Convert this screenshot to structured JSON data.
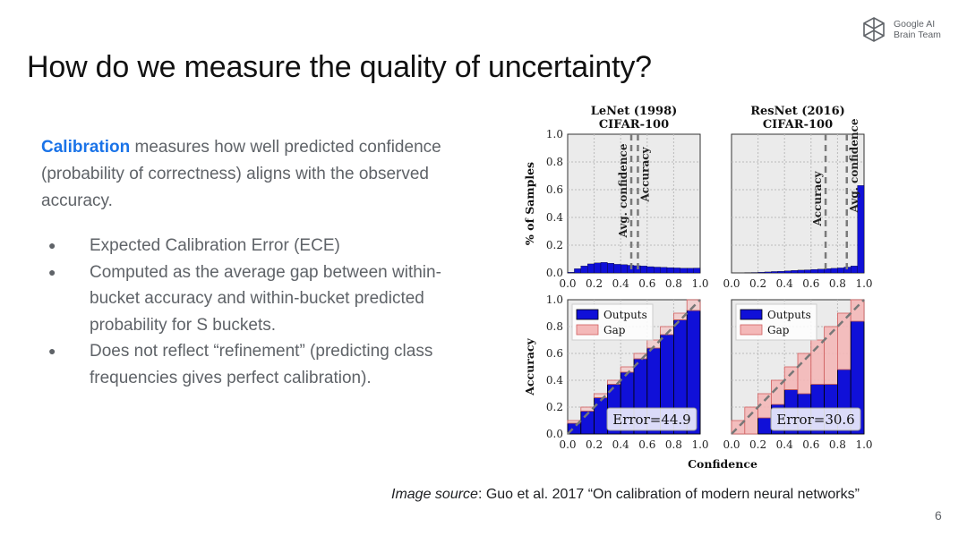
{
  "header": {
    "logo_line1": "Google AI",
    "logo_line2": "Brain Team"
  },
  "title": "How do we measure the quality of uncertainty?",
  "intro": {
    "keyword": "Calibration",
    "text": " measures how well predicted confidence (probability of correctness) aligns with the observed accuracy."
  },
  "bullets": [
    "Expected Calibration Error (ECE)",
    "Computed as the average gap between within-bucket accuracy and within-bucket predicted probability for S buckets.",
    "Does not reflect “refinement” (predicting class frequencies gives perfect calibration)."
  ],
  "source": {
    "label": "Image source",
    "text": ": Guo  et al. 2017 “On calibration of modern neural networks”"
  },
  "page_number": "6",
  "colors": {
    "outputs": "#1010d8",
    "gap": "#f4b8b8",
    "vline": "#7a7a7a",
    "blue_accent": "#1a73e8"
  },
  "chart_data": {
    "type": "bar",
    "bin_edges": [
      0.0,
      0.1,
      0.2,
      0.3,
      0.4,
      0.5,
      0.6,
      0.7,
      0.8,
      0.9,
      1.0
    ],
    "shared_xlabel": "Confidence",
    "ticks": [
      "0.0",
      "0.2",
      "0.4",
      "0.6",
      "0.8",
      "1.0"
    ],
    "panels": [
      {
        "title_line1": "LeNet (1998)",
        "title_line2": "CIFAR-100",
        "histogram": {
          "ylabel": "% of Samples",
          "ylim": [
            0,
            1
          ],
          "bin_centers": [
            0.025,
            0.075,
            0.125,
            0.175,
            0.225,
            0.275,
            0.325,
            0.375,
            0.425,
            0.475,
            0.525,
            0.575,
            0.625,
            0.675,
            0.725,
            0.775,
            0.825,
            0.875,
            0.925,
            0.975
          ],
          "values": [
            0.005,
            0.03,
            0.05,
            0.065,
            0.072,
            0.076,
            0.07,
            0.062,
            0.06,
            0.055,
            0.052,
            0.05,
            0.045,
            0.042,
            0.04,
            0.038,
            0.036,
            0.034,
            0.034,
            0.035
          ],
          "avg_confidence": 0.48,
          "accuracy": 0.53,
          "label_avg_confidence": "Avg. confidence",
          "label_accuracy": "Accuracy"
        },
        "reliability": {
          "ylabel": "Accuracy",
          "ylim": [
            0,
            1
          ],
          "outputs": [
            0.08,
            0.17,
            0.27,
            0.37,
            0.46,
            0.56,
            0.64,
            0.74,
            0.85,
            0.92
          ],
          "legend_outputs": "Outputs",
          "legend_gap": "Gap",
          "error_label": "Error=44.9"
        }
      },
      {
        "title_line1": "ResNet (2016)",
        "title_line2": "CIFAR-100",
        "histogram": {
          "ylabel": "",
          "ylim": [
            0,
            1
          ],
          "bin_centers": [
            0.025,
            0.075,
            0.125,
            0.175,
            0.225,
            0.275,
            0.325,
            0.375,
            0.425,
            0.475,
            0.525,
            0.575,
            0.625,
            0.675,
            0.725,
            0.775,
            0.825,
            0.875,
            0.925,
            0.975
          ],
          "values": [
            0.0,
            0.0,
            0.002,
            0.003,
            0.005,
            0.007,
            0.01,
            0.012,
            0.015,
            0.018,
            0.02,
            0.022,
            0.025,
            0.027,
            0.03,
            0.033,
            0.036,
            0.042,
            0.05,
            0.63
          ],
          "avg_confidence": 0.87,
          "accuracy": 0.71,
          "label_avg_confidence": "Avg. confidence",
          "label_accuracy": "Accuracy"
        },
        "reliability": {
          "ylabel": "",
          "ylim": [
            0,
            1
          ],
          "outputs": [
            0.0,
            0.0,
            0.12,
            0.22,
            0.33,
            0.3,
            0.37,
            0.37,
            0.48,
            0.84
          ],
          "legend_outputs": "Outputs",
          "legend_gap": "Gap",
          "error_label": "Error=30.6"
        }
      }
    ]
  }
}
